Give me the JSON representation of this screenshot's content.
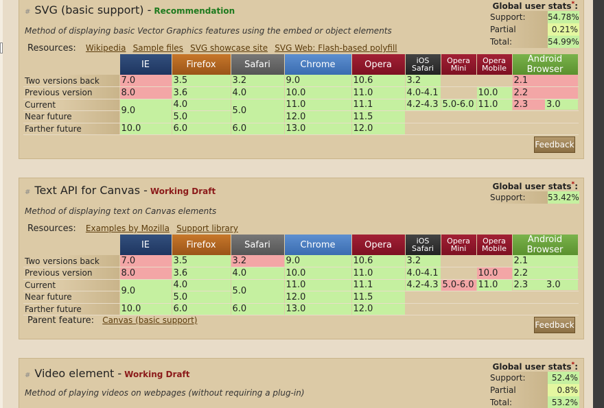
{
  "browsers": [
    {
      "label": "IE",
      "cls": "ie"
    },
    {
      "label": "Firefox",
      "cls": "ff"
    },
    {
      "label": "Safari",
      "cls": "sf"
    },
    {
      "label": "Chrome",
      "cls": "ch"
    },
    {
      "label": "Opera",
      "cls": "op"
    },
    {
      "label": "iOS Safari",
      "cls": "ios"
    },
    {
      "label": "Opera Mini",
      "cls": "om"
    },
    {
      "label": "Opera Mobile",
      "cls": "omob"
    },
    {
      "label": "Android Browser",
      "cls": "ab"
    }
  ],
  "row_labels": [
    "Two versions back",
    "Previous version",
    "Current",
    "Near future",
    "Farther future"
  ],
  "features": [
    {
      "title": "SVG (basic support)",
      "status": "Recommendation",
      "status_type": "rec",
      "description": "Method of displaying basic Vector Graphics features using the embed or object elements",
      "resources_label": "Resources:",
      "resources": [
        "Wikipedia",
        "Sample files",
        "SVG showcase site",
        "SVG Web: Flash-based polyfill"
      ],
      "stats_title": "Global user stats",
      "stats": [
        {
          "label": "Support:",
          "value": "54.78%",
          "kind": "green"
        },
        {
          "label": "Partial support:",
          "value": "0.21%",
          "kind": "lime"
        },
        {
          "label": "Total:",
          "value": "54.99%",
          "kind": "tot"
        }
      ],
      "cells": {
        "ie": [
          [
            "7.0",
            "n"
          ],
          [
            "8.0",
            "n"
          ],
          [
            "9.0",
            "y"
          ],
          [
            "10.0",
            "y"
          ]
        ],
        "ff": [
          [
            "3.5",
            "y"
          ],
          [
            "3.6",
            "y"
          ],
          [
            "4.0",
            "y"
          ],
          [
            "5.0",
            "y"
          ],
          [
            "6.0",
            "y"
          ]
        ],
        "sf": [
          [
            "3.2",
            "y"
          ],
          [
            "4.0",
            "y"
          ],
          [
            "5.0",
            "y"
          ],
          [
            "6.0",
            "y"
          ]
        ],
        "ch": [
          [
            "9.0",
            "y"
          ],
          [
            "10.0",
            "y"
          ],
          [
            "11.0",
            "y"
          ],
          [
            "12.0",
            "y"
          ],
          [
            "13.0",
            "y"
          ]
        ],
        "op": [
          [
            "10.6",
            "y"
          ],
          [
            "11.0",
            "y"
          ],
          [
            "11.1",
            "y"
          ],
          [
            "11.5",
            "y"
          ],
          [
            "12.0",
            "y"
          ]
        ],
        "ios": [
          [
            "3.2",
            "y"
          ],
          [
            "4.0-4.1",
            "y"
          ],
          [
            "4.2-4.3",
            "y"
          ]
        ],
        "om": [
          [
            "5.0-6.0",
            "y"
          ]
        ],
        "omob": [
          [
            "10.0",
            "y"
          ],
          [
            "11.0",
            "y"
          ]
        ],
        "ab": [
          [
            "2.1",
            "n"
          ],
          [
            "2.2",
            "n"
          ],
          [
            "2.3",
            "n"
          ],
          [
            "3.0",
            "y"
          ]
        ]
      },
      "parent_label": "",
      "parent_link": "",
      "feedback": "Feedback"
    },
    {
      "title": "Text API for Canvas",
      "status": "Working Draft",
      "status_type": "wd",
      "description": "Method of displaying text on Canvas elements",
      "resources_label": "Resources:",
      "resources": [
        "Examples by Mozilla",
        "Support library"
      ],
      "stats_title": "Global user stats",
      "stats": [
        {
          "label": "Support:",
          "value": "53.42%",
          "kind": "green"
        }
      ],
      "cells": {
        "ie": [
          [
            "7.0",
            "n"
          ],
          [
            "8.0",
            "n"
          ],
          [
            "9.0",
            "y"
          ],
          [
            "10.0",
            "y"
          ]
        ],
        "ff": [
          [
            "3.5",
            "y"
          ],
          [
            "3.6",
            "y"
          ],
          [
            "4.0",
            "y"
          ],
          [
            "5.0",
            "y"
          ],
          [
            "6.0",
            "y"
          ]
        ],
        "sf": [
          [
            "3.2",
            "n"
          ],
          [
            "4.0",
            "y"
          ],
          [
            "5.0",
            "y"
          ],
          [
            "6.0",
            "y"
          ]
        ],
        "ch": [
          [
            "9.0",
            "y"
          ],
          [
            "10.0",
            "y"
          ],
          [
            "11.0",
            "y"
          ],
          [
            "12.0",
            "y"
          ],
          [
            "13.0",
            "y"
          ]
        ],
        "op": [
          [
            "10.6",
            "y"
          ],
          [
            "11.0",
            "y"
          ],
          [
            "11.1",
            "y"
          ],
          [
            "11.5",
            "y"
          ],
          [
            "12.0",
            "y"
          ]
        ],
        "ios": [
          [
            "3.2",
            "y"
          ],
          [
            "4.0-4.1",
            "y"
          ],
          [
            "4.2-4.3",
            "y"
          ]
        ],
        "om": [
          [
            "5.0-6.0",
            "n"
          ]
        ],
        "omob": [
          [
            "10.0",
            "n"
          ],
          [
            "11.0",
            "y"
          ]
        ],
        "ab": [
          [
            "2.1",
            "y"
          ],
          [
            "2.2",
            "y"
          ],
          [
            "2.3",
            "y"
          ],
          [
            "3.0",
            "y"
          ]
        ]
      },
      "parent_label": "Parent feature:",
      "parent_link": "Canvas (basic support)",
      "feedback": "Feedback"
    },
    {
      "title": "Video element",
      "status": "Working Draft",
      "status_type": "wd",
      "description": "Method of playing videos on webpages (without requiring a plug-in)",
      "stats_title": "Global user stats",
      "stats": [
        {
          "label": "Support:",
          "value": "52.4%",
          "kind": "green"
        },
        {
          "label": "Partial support:",
          "value": "0.8%",
          "kind": "lime"
        },
        {
          "label": "Total:",
          "value": "53.2%",
          "kind": "tot"
        }
      ]
    }
  ]
}
